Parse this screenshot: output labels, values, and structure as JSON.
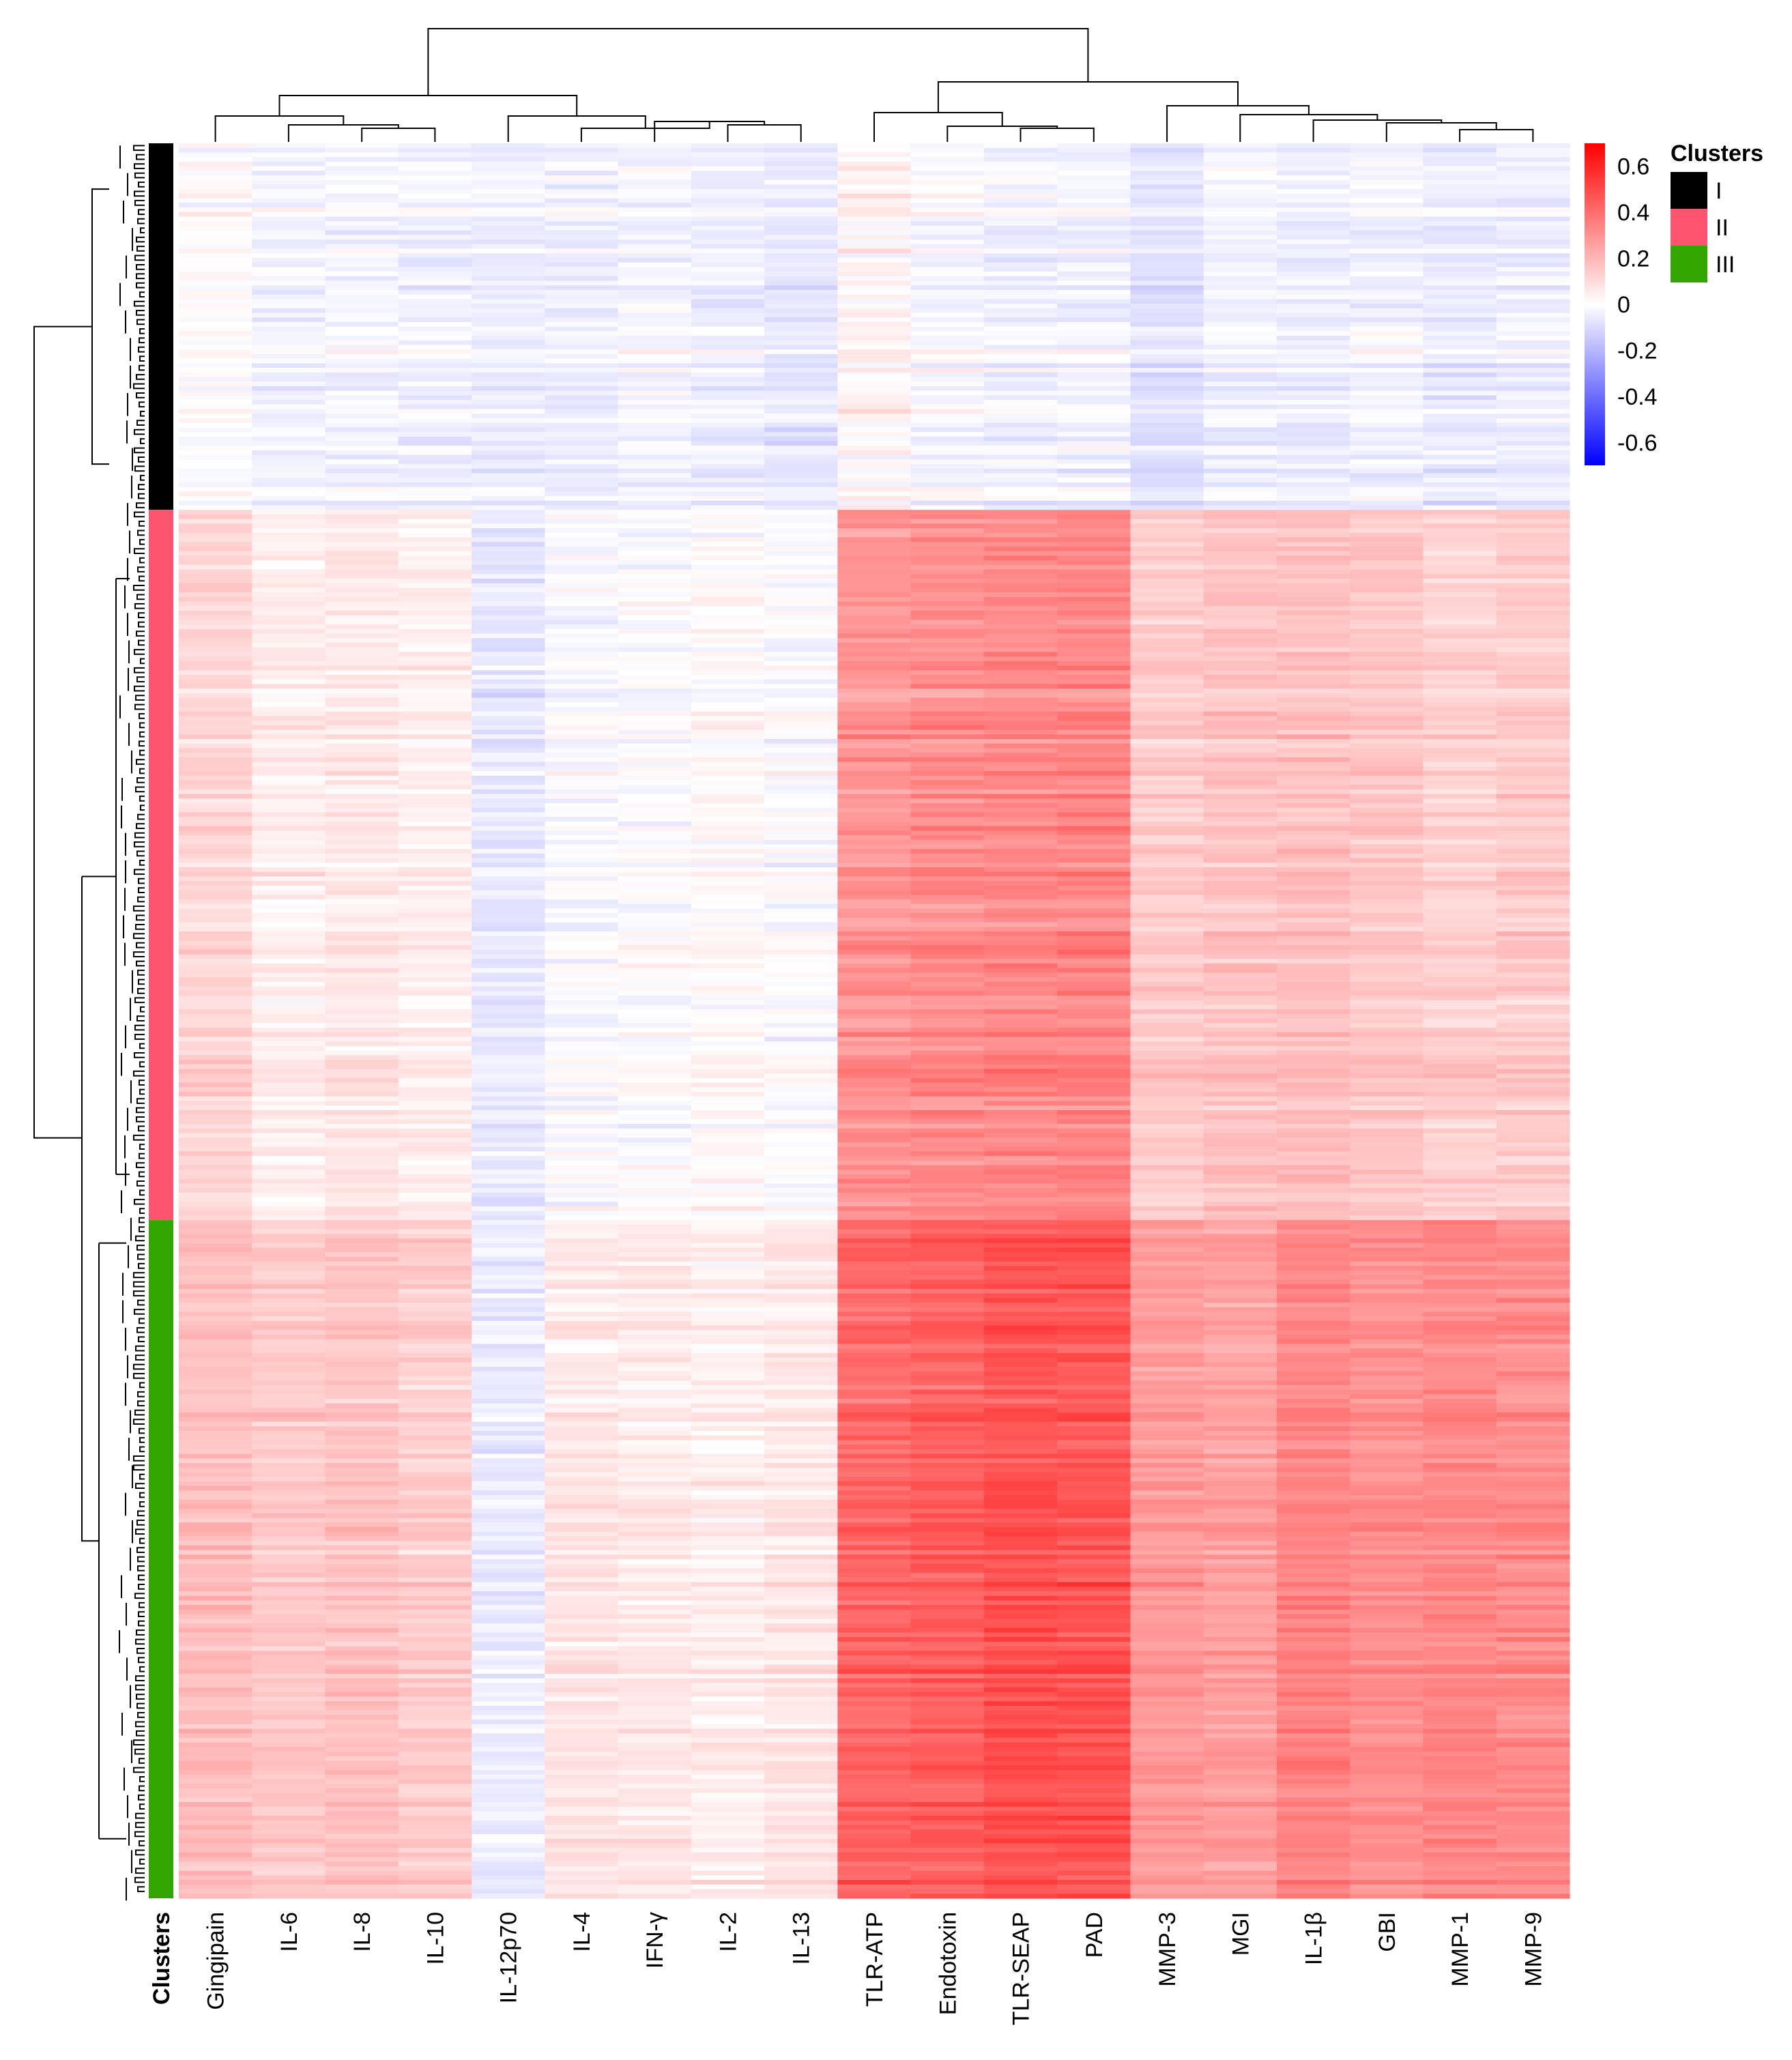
{
  "chart_data": {
    "type": "heatmap",
    "columns": [
      "Gingipain",
      "IL-6",
      "IL-8",
      "IL-10",
      "IL-12p70",
      "IL-4",
      "IFN-γ",
      "IL-2",
      "IL-13",
      "TLR-ATP",
      "Endotoxin",
      "TLR-SEAP",
      "PAD",
      "MMP-3",
      "MGI",
      "IL-1β",
      "GBI",
      "MMP-1",
      "MMP-9"
    ],
    "row_annotation_label": "Clusters",
    "legend_title": "Clusters",
    "clusters": [
      {
        "name": "I",
        "color": "#000000",
        "rows": 80,
        "column_means": [
          0.0,
          -0.04,
          -0.03,
          -0.04,
          -0.05,
          -0.05,
          -0.03,
          -0.05,
          -0.07,
          0.02,
          -0.02,
          -0.04,
          -0.04,
          -0.08,
          -0.04,
          -0.05,
          -0.04,
          -0.06,
          -0.05
        ]
      },
      {
        "name": "II",
        "color": "#ff5470",
        "rows": 155,
        "column_means": [
          0.12,
          0.05,
          0.07,
          0.05,
          -0.06,
          -0.01,
          0.0,
          0.02,
          0.0,
          0.3,
          0.32,
          0.33,
          0.34,
          0.15,
          0.17,
          0.18,
          0.16,
          0.13,
          0.15
        ]
      },
      {
        "name": "III",
        "color": "#33a600",
        "rows": 148,
        "column_means": [
          0.18,
          0.15,
          0.17,
          0.14,
          -0.05,
          0.07,
          0.06,
          0.05,
          0.07,
          0.42,
          0.44,
          0.48,
          0.47,
          0.28,
          0.26,
          0.34,
          0.31,
          0.33,
          0.32
        ]
      }
    ],
    "colorbar": {
      "min": -0.7,
      "max": 0.7,
      "ticks": [
        "0.6",
        "0.4",
        "0.2",
        "0",
        "-0.2",
        "-0.4",
        "-0.6"
      ],
      "tick_values": [
        0.6,
        0.4,
        0.2,
        0,
        -0.2,
        -0.4,
        -0.6
      ],
      "low_color": "#0000ff",
      "mid_color": "#ffffff",
      "high_color": "#ff0000"
    },
    "column_dendrogram": "hierarchical clustering of 19 variables; two main branches: (Gingipain … IL-13) and (TLR-ATP … MMP-9)",
    "row_dendrogram": "hierarchical clustering of samples into clusters I, II, III"
  }
}
